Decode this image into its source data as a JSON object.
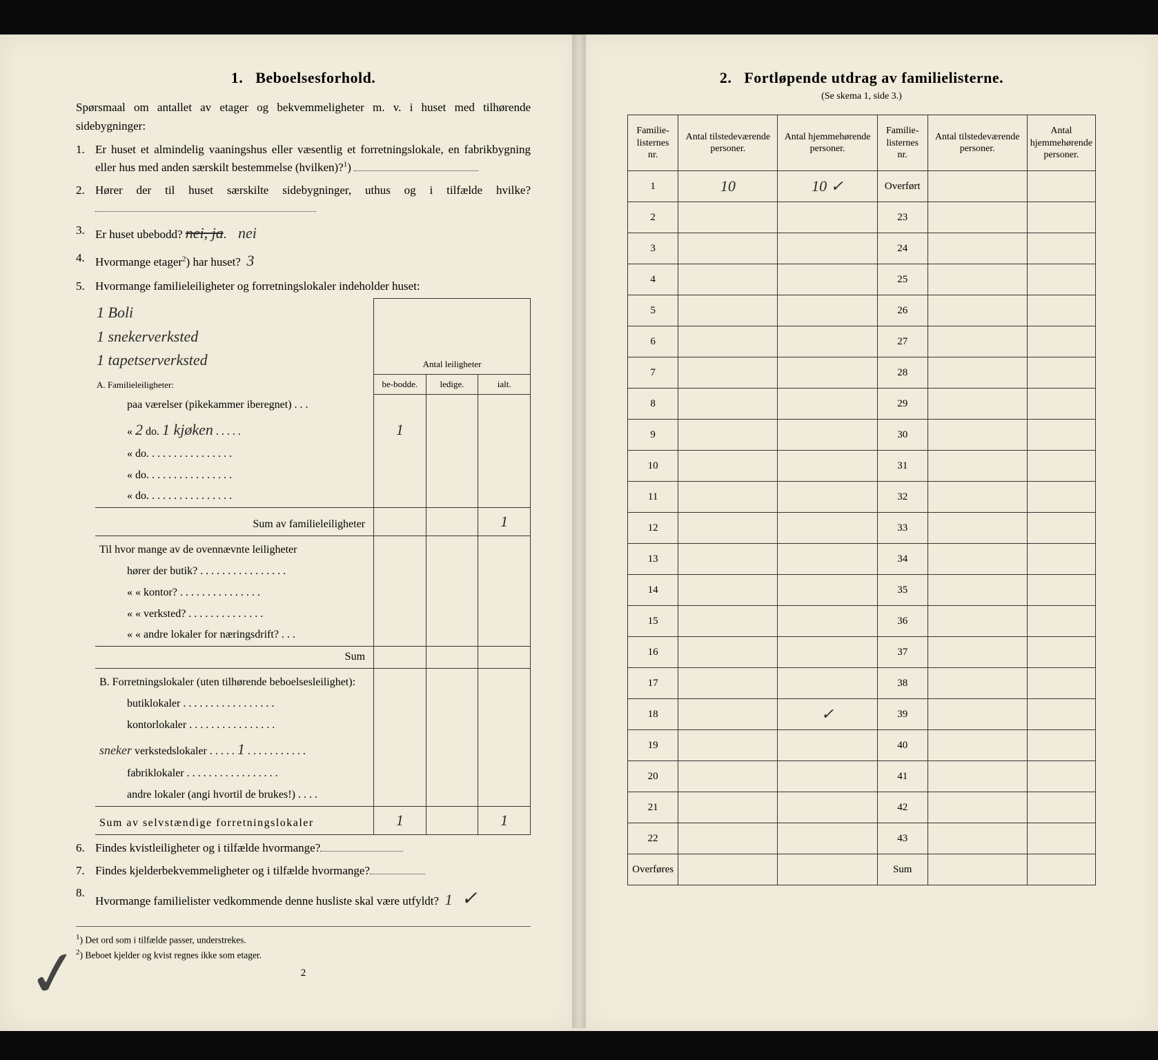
{
  "left": {
    "section_number": "1.",
    "section_title": "Beboelsesforhold.",
    "intro": "Spørsmaal om antallet av etager og bekvemmeligheter m. v. i huset med tilhørende sidebygninger:",
    "q1": "Er huset et almindelig vaaningshus eller væsentlig et forretningslokale, en fabrikbygning eller hus med anden særskilt bestemmelse (hvilken)?",
    "q2": "Hører der til huset særskilte sidebygninger, uthus og i tilfælde hvilke?",
    "q3_label": "Er huset ubebodd?",
    "q3_ans_struck": "nei, ja",
    "q3_ans": "nei",
    "q4_label": "Hvormange etager",
    "q4_after": "har huset?",
    "q4_ans": "3",
    "q5": "Hvormange familieleiligheter og forretningslokaler indeholder huset:",
    "q5_hand1": "1 Boli",
    "q5_hand2": "1 snekerverksted",
    "q5_hand3": "1 tapetserverksted",
    "leil_header_span": "Antal leiligheter",
    "leil_head_be": "be-bodde.",
    "leil_head_ledige": "ledige.",
    "leil_head_ialt": "ialt.",
    "A_title": "A. Familieleiligheter:",
    "A_row1": "paa        værelser (pikekammer iberegnet) . . .",
    "A_row2_pre": "«   ",
    "A_row2_num": "2",
    "A_row2_mid": "   do.   ",
    "A_row2_hand": "1 kjøken",
    "A_row2_val": "1",
    "A_row3": "«        do.   . . . . . . . . . . . . . . .",
    "A_row4": "«        do.   . . . . . . . . . . . . . . .",
    "A_row5": "«        do.   . . . . . . . . . . . . . . .",
    "A_sum_label": "Sum av familieleiligheter",
    "A_sum_val": "1",
    "til_intro": "Til hvor mange av de ovennævnte leiligheter",
    "til_1": "hører der butik? . . . . . . . . . . . . . . . .",
    "til_2": "«     «   kontor? . . . . . . . . . . . . . . .",
    "til_3": "«     «   verksted? . . . . . . . . . . . . . .",
    "til_4": "«     «   andre lokaler for næringsdrift? . . .",
    "til_sum": "Sum",
    "B_title": "B. Forretningslokaler (uten tilhørende beboelsesleilighet):",
    "B_1": "butiklokaler . . . . . . . . . . . . . . . . .",
    "B_2": "kontorlokaler . . . . . . . . . . . . . . . .",
    "B_3_hand_prefix": "sneker",
    "B_3": "verkstedslokaler . . . . .",
    "B_3_val": "1",
    "B_3_dots": ". . . . . . . . . . .",
    "B_4": "fabriklokaler . . . . . . . . . . . . . . . . .",
    "B_5": "andre lokaler (angi hvortil de brukes!) . . . .",
    "B_sum_label": "Sum av selvstændige forretningslokaler",
    "B_sum_be": "1",
    "B_sum_ialt": "1",
    "q6": "Findes kvistleiligheter og i tilfælde hvormange?",
    "q7": "Findes kjelderbekvemmeligheter og i tilfælde hvormange?",
    "q8": "Hvormange familielister vedkommende denne husliste skal være utfyldt?",
    "q8_ans": "1",
    "footnote1": "Det ord som i tilfælde passer, understrekes.",
    "footnote2": "Beboet kjelder og kvist regnes ikke som etager.",
    "page_number": "2"
  },
  "right": {
    "section_number": "2.",
    "section_title": "Fortløpende utdrag av familielisterne.",
    "subtitle": "(Se skema 1, side 3.)",
    "col_nr": "Familie-listernes nr.",
    "col_tils": "Antal tilstedeværende personer.",
    "col_hjem": "Antal hjemmehørende personer.",
    "overfort": "Overført",
    "overfores": "Overføres",
    "sum": "Sum",
    "left_rows": [
      {
        "nr": "1",
        "tils": "10",
        "hjem": "10  ✓"
      },
      {
        "nr": "2",
        "tils": "",
        "hjem": ""
      },
      {
        "nr": "3",
        "tils": "",
        "hjem": ""
      },
      {
        "nr": "4",
        "tils": "",
        "hjem": ""
      },
      {
        "nr": "5",
        "tils": "",
        "hjem": ""
      },
      {
        "nr": "6",
        "tils": "",
        "hjem": ""
      },
      {
        "nr": "7",
        "tils": "",
        "hjem": ""
      },
      {
        "nr": "8",
        "tils": "",
        "hjem": ""
      },
      {
        "nr": "9",
        "tils": "",
        "hjem": ""
      },
      {
        "nr": "10",
        "tils": "",
        "hjem": ""
      },
      {
        "nr": "11",
        "tils": "",
        "hjem": ""
      },
      {
        "nr": "12",
        "tils": "",
        "hjem": ""
      },
      {
        "nr": "13",
        "tils": "",
        "hjem": ""
      },
      {
        "nr": "14",
        "tils": "",
        "hjem": ""
      },
      {
        "nr": "15",
        "tils": "",
        "hjem": ""
      },
      {
        "nr": "16",
        "tils": "",
        "hjem": ""
      },
      {
        "nr": "17",
        "tils": "",
        "hjem": ""
      },
      {
        "nr": "18",
        "tils": "",
        "hjem": "✓"
      },
      {
        "nr": "19",
        "tils": "",
        "hjem": ""
      },
      {
        "nr": "20",
        "tils": "",
        "hjem": ""
      },
      {
        "nr": "21",
        "tils": "",
        "hjem": ""
      },
      {
        "nr": "22",
        "tils": "",
        "hjem": ""
      }
    ],
    "right_rows": [
      {
        "nr": "Overført",
        "tils": "",
        "hjem": ""
      },
      {
        "nr": "23",
        "tils": "",
        "hjem": ""
      },
      {
        "nr": "24",
        "tils": "",
        "hjem": ""
      },
      {
        "nr": "25",
        "tils": "",
        "hjem": ""
      },
      {
        "nr": "26",
        "tils": "",
        "hjem": ""
      },
      {
        "nr": "27",
        "tils": "",
        "hjem": ""
      },
      {
        "nr": "28",
        "tils": "",
        "hjem": ""
      },
      {
        "nr": "29",
        "tils": "",
        "hjem": ""
      },
      {
        "nr": "30",
        "tils": "",
        "hjem": ""
      },
      {
        "nr": "31",
        "tils": "",
        "hjem": ""
      },
      {
        "nr": "32",
        "tils": "",
        "hjem": ""
      },
      {
        "nr": "33",
        "tils": "",
        "hjem": ""
      },
      {
        "nr": "34",
        "tils": "",
        "hjem": ""
      },
      {
        "nr": "35",
        "tils": "",
        "hjem": ""
      },
      {
        "nr": "36",
        "tils": "",
        "hjem": ""
      },
      {
        "nr": "37",
        "tils": "",
        "hjem": ""
      },
      {
        "nr": "38",
        "tils": "",
        "hjem": ""
      },
      {
        "nr": "39",
        "tils": "",
        "hjem": ""
      },
      {
        "nr": "40",
        "tils": "",
        "hjem": ""
      },
      {
        "nr": "41",
        "tils": "",
        "hjem": ""
      },
      {
        "nr": "42",
        "tils": "",
        "hjem": ""
      },
      {
        "nr": "43",
        "tils": "",
        "hjem": ""
      }
    ]
  },
  "colors": {
    "paper": "#f0ebda",
    "ink": "#1a1a1a",
    "background": "#0a0a0a"
  }
}
